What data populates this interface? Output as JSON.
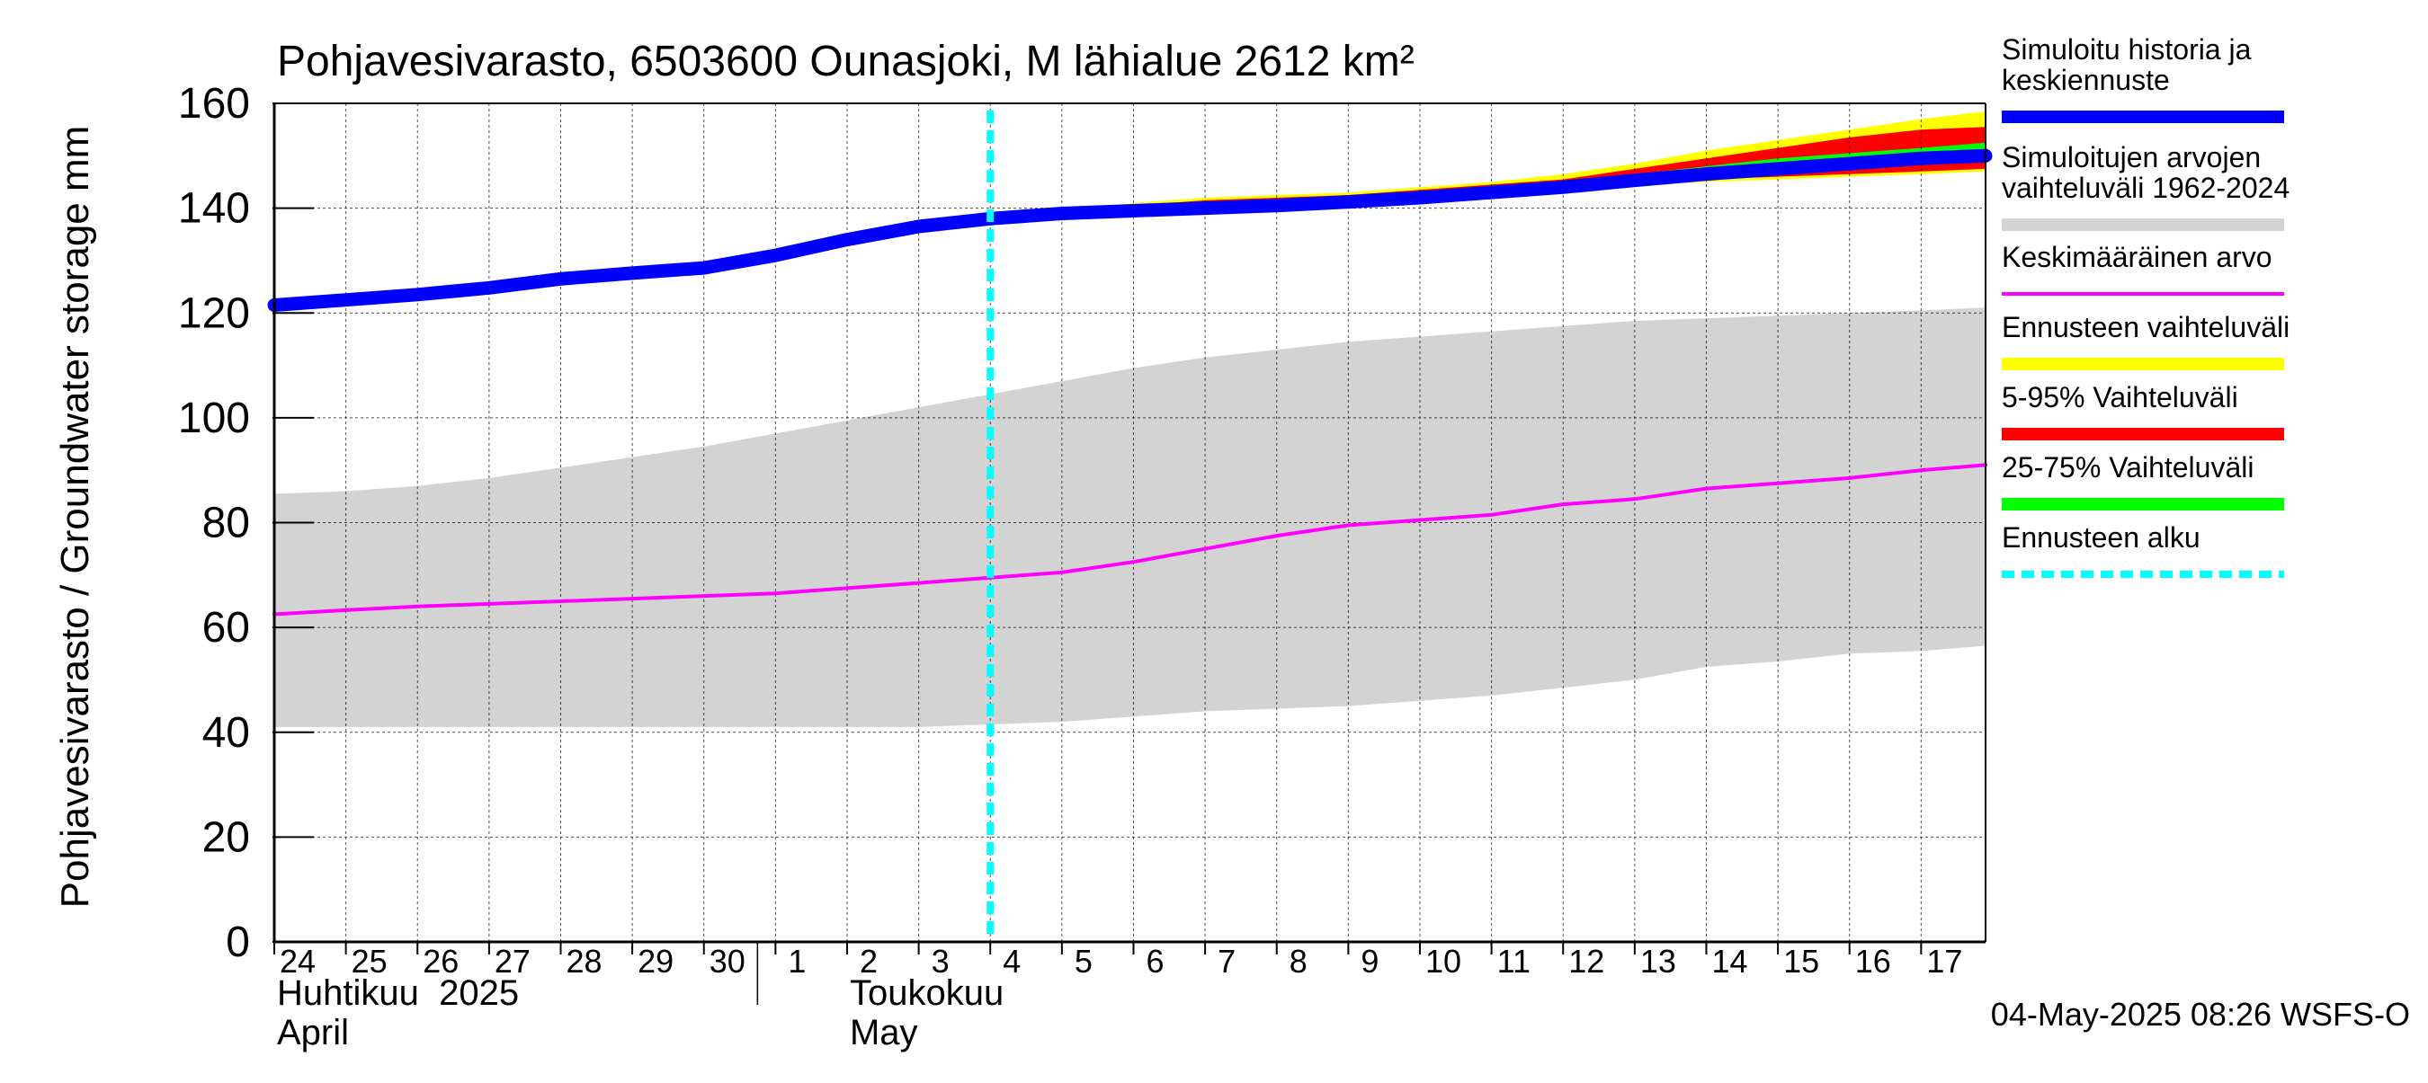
{
  "chart_data": {
    "type": "line",
    "title": "Pohjavesivarasto, 6503600 Ounasjoki, M lähialue 2612 km²",
    "ylabel": "Pohjavesivarasto / Groundwater storage   mm",
    "ylim": [
      0,
      160
    ],
    "yticks": [
      0,
      20,
      40,
      60,
      80,
      100,
      120,
      140,
      160
    ],
    "xlim": [
      0,
      23.9
    ],
    "grid": true,
    "x_tick_labels": [
      {
        "x": 0,
        "label": "24"
      },
      {
        "x": 1,
        "label": "25"
      },
      {
        "x": 2,
        "label": "26"
      },
      {
        "x": 3,
        "label": "27"
      },
      {
        "x": 4,
        "label": "28"
      },
      {
        "x": 5,
        "label": "29"
      },
      {
        "x": 6,
        "label": "30"
      },
      {
        "x": 7,
        "label": "1"
      },
      {
        "x": 8,
        "label": "2"
      },
      {
        "x": 9,
        "label": "3"
      },
      {
        "x": 10,
        "label": "4"
      },
      {
        "x": 11,
        "label": "5"
      },
      {
        "x": 12,
        "label": "6"
      },
      {
        "x": 13,
        "label": "7"
      },
      {
        "x": 14,
        "label": "8"
      },
      {
        "x": 15,
        "label": "9"
      },
      {
        "x": 16,
        "label": "10"
      },
      {
        "x": 17,
        "label": "11"
      },
      {
        "x": 18,
        "label": "12"
      },
      {
        "x": 19,
        "label": "13"
      },
      {
        "x": 20,
        "label": "14"
      },
      {
        "x": 21,
        "label": "15"
      },
      {
        "x": 22,
        "label": "16"
      },
      {
        "x": 23,
        "label": "17"
      }
    ],
    "month_labels": [
      {
        "x": 0,
        "fi": "Huhtikuu  2025",
        "en": "April"
      },
      {
        "x": 8,
        "fi": "Toukokuu",
        "en": "May"
      }
    ],
    "month_separator_x": 7,
    "forecast_start_x": 10,
    "legend_position": "right",
    "legend": [
      {
        "label": "Simuloitu historia ja\nkeskiennuste",
        "color": "#0000ff",
        "style": "thick"
      },
      {
        "label": "Simuloitujen arvojen\nvaihteluväli 1962-2024",
        "color": "#d3d3d3",
        "style": "thick"
      },
      {
        "label": "Keskimääräinen arvo",
        "color": "#ff00ff",
        "style": "thin"
      },
      {
        "label": "Ennusteen vaihteluväli",
        "color": "#ffff00",
        "style": "thick"
      },
      {
        "label": "5-95% Vaihteluväli",
        "color": "#ff0000",
        "style": "thick"
      },
      {
        "label": "25-75% Vaihteluväli",
        "color": "#00ff00",
        "style": "thick"
      },
      {
        "label": "Ennusteen alku",
        "color": "#00ffff",
        "style": "dashed"
      }
    ],
    "series": [
      {
        "name": "Simuloitujen arvojen vaihteluväli 1962-2024",
        "kind": "band",
        "color": "#d3d3d3",
        "x": [
          0,
          1,
          2,
          3,
          4,
          5,
          6,
          7,
          8,
          9,
          10,
          11,
          12,
          13,
          14,
          15,
          16,
          17,
          18,
          19,
          20,
          21,
          22,
          23,
          23.9
        ],
        "lower": [
          41,
          41,
          41,
          41,
          41,
          41,
          41,
          41,
          41,
          41,
          41.5,
          42,
          43,
          44,
          44.5,
          45,
          46,
          47,
          48.5,
          50,
          52.5,
          53.5,
          55,
          55.5,
          56.5
        ],
        "upper": [
          85.5,
          86,
          87,
          88.5,
          90.5,
          92.5,
          94.5,
          97,
          99.5,
          102,
          104.5,
          107,
          109.5,
          111.5,
          113,
          114.5,
          115.5,
          116.5,
          117.5,
          118.5,
          119,
          119.5,
          120,
          120.5,
          121
        ]
      },
      {
        "name": "Ennusteen vaihteluväli",
        "kind": "band",
        "color": "#ffff00",
        "x": [
          10,
          11,
          12,
          13,
          14,
          15,
          16,
          17,
          18,
          19,
          20,
          21,
          22,
          23,
          23.9
        ],
        "lower": [
          138,
          139,
          139.5,
          140,
          140.5,
          141,
          141.5,
          142,
          143,
          144.5,
          145,
          145.5,
          146,
          146.5,
          147
        ],
        "upper": [
          138,
          139.5,
          141,
          142,
          142.5,
          143,
          144,
          145,
          146.5,
          148.5,
          151,
          153,
          155,
          157,
          158.5
        ]
      },
      {
        "name": "5-95% Vaihteluväli",
        "kind": "band",
        "color": "#ff0000",
        "x": [
          10,
          11,
          12,
          13,
          14,
          15,
          16,
          17,
          18,
          19,
          20,
          21,
          22,
          23,
          23.9
        ],
        "lower": [
          138,
          139,
          139.5,
          140,
          140.5,
          141,
          141.5,
          142,
          143,
          144.5,
          145.5,
          146,
          146.5,
          147,
          147.5
        ],
        "upper": [
          138,
          139.5,
          140.5,
          141.5,
          142,
          142.5,
          143.5,
          144.5,
          145.5,
          147.5,
          149.5,
          151.5,
          153.5,
          155,
          155.5
        ]
      },
      {
        "name": "25-75% Vaihteluväli",
        "kind": "band",
        "color": "#00ff00",
        "x": [
          10,
          11,
          12,
          13,
          14,
          15,
          16,
          17,
          18,
          19,
          20,
          21,
          22,
          23,
          23.9
        ],
        "lower": [
          138,
          139,
          139.8,
          140.5,
          141,
          141.5,
          142.2,
          143.2,
          144.3,
          145.5,
          146.5,
          147.5,
          148.5,
          149.5,
          150
        ],
        "upper": [
          138,
          139.2,
          140.2,
          141,
          141.5,
          142,
          143,
          144,
          145.2,
          146.5,
          148,
          149.5,
          150.5,
          151.5,
          152.5
        ]
      },
      {
        "name": "Keskimääräinen arvo",
        "kind": "line",
        "color": "#ff00ff",
        "x": [
          0,
          1,
          2,
          3,
          4,
          5,
          6,
          7,
          8,
          9,
          10,
          11,
          12,
          13,
          14,
          15,
          16,
          17,
          18,
          19,
          20,
          21,
          22,
          23,
          23.9
        ],
        "y": [
          62.5,
          63.3,
          64,
          64.5,
          65,
          65.5,
          66,
          66.5,
          67.5,
          68.5,
          69.5,
          70.5,
          72.5,
          75,
          77.5,
          79.5,
          80.5,
          81.5,
          83.5,
          84.5,
          86.5,
          87.5,
          88.5,
          90,
          91
        ]
      },
      {
        "name": "Simuloitu historia ja keskiennuste",
        "kind": "line",
        "color": "#0000ff",
        "x": [
          0,
          1,
          2,
          3,
          4,
          5,
          6,
          7,
          8,
          9,
          10,
          11,
          12,
          13,
          14,
          15,
          16,
          17,
          18,
          19,
          20,
          21,
          22,
          23,
          23.9
        ],
        "y": [
          121.5,
          122.5,
          123.5,
          124.8,
          126.5,
          127.6,
          128.6,
          131,
          134,
          136.5,
          138,
          139,
          139.5,
          140,
          140.5,
          141.2,
          142,
          143,
          144,
          145.3,
          146.5,
          147.5,
          148.5,
          149.5,
          150
        ]
      }
    ],
    "footer": "04-May-2025 08:26 WSFS-O"
  }
}
